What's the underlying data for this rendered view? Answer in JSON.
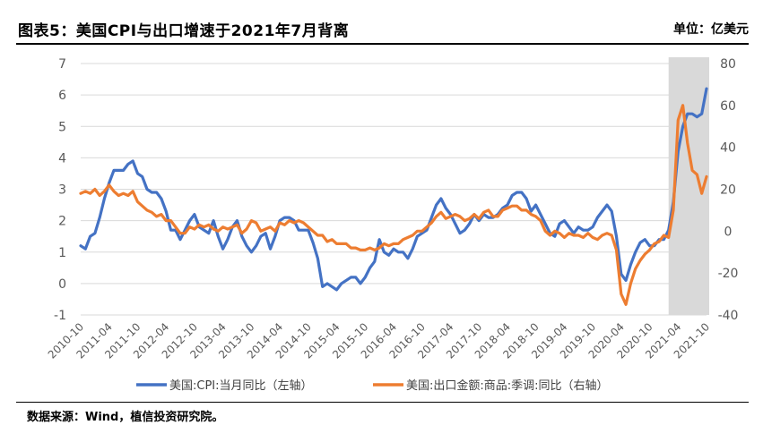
{
  "header": {
    "title": "图表5：美国CPI与出口增速于2021年7月背离",
    "unit": "单位：亿美元"
  },
  "footer": {
    "source": "数据来源：Wind，植信投资研究院。"
  },
  "colors": {
    "cpi": "#4472C4",
    "export": "#ED7D31",
    "shade": "#D9D9D9",
    "grid": "#D9D9D9",
    "axis_text": "#595959"
  },
  "chart_data": {
    "type": "line",
    "x_labels": [
      "2010-10",
      "2011-04",
      "2011-10",
      "2012-04",
      "2012-10",
      "2013-04",
      "2013-10",
      "2014-04",
      "2014-10",
      "2015-04",
      "2015-10",
      "2016-04",
      "2016-10",
      "2017-04",
      "2017-10",
      "2018-04",
      "2018-10",
      "2019-04",
      "2019-10",
      "2020-04",
      "2020-10",
      "2021-04",
      "2021-10"
    ],
    "x_start": "2010-10",
    "x_end": "2021-10",
    "ylim_left": [
      -1,
      7
    ],
    "yticks_left": [
      "-1",
      "0",
      "1",
      "2",
      "3",
      "4",
      "5",
      "6",
      "7"
    ],
    "ylim_right": [
      -40,
      80
    ],
    "yticks_right": [
      "-40",
      "-20",
      "0",
      "20",
      "40",
      "60",
      "80"
    ],
    "shaded_region": {
      "from": "2021-02",
      "to": "2021-10"
    },
    "grid": "horizontal",
    "legend_position": "bottom",
    "series": [
      {
        "name": "美国:CPI:当月同比（左轴）",
        "axis": "left",
        "values": [
          [
            "2010-10",
            1.2
          ],
          [
            "2010-11",
            1.1
          ],
          [
            "2010-12",
            1.5
          ],
          [
            "2011-01",
            1.6
          ],
          [
            "2011-02",
            2.1
          ],
          [
            "2011-03",
            2.7
          ],
          [
            "2011-04",
            3.2
          ],
          [
            "2011-05",
            3.6
          ],
          [
            "2011-06",
            3.6
          ],
          [
            "2011-07",
            3.6
          ],
          [
            "2011-08",
            3.8
          ],
          [
            "2011-09",
            3.9
          ],
          [
            "2011-10",
            3.5
          ],
          [
            "2011-11",
            3.4
          ],
          [
            "2011-12",
            3.0
          ],
          [
            "2012-01",
            2.9
          ],
          [
            "2012-02",
            2.9
          ],
          [
            "2012-03",
            2.7
          ],
          [
            "2012-04",
            2.3
          ],
          [
            "2012-05",
            1.7
          ],
          [
            "2012-06",
            1.7
          ],
          [
            "2012-07",
            1.4
          ],
          [
            "2012-08",
            1.7
          ],
          [
            "2012-09",
            2.0
          ],
          [
            "2012-10",
            2.2
          ],
          [
            "2012-11",
            1.8
          ],
          [
            "2012-12",
            1.7
          ],
          [
            "2013-01",
            1.6
          ],
          [
            "2013-02",
            2.0
          ],
          [
            "2013-03",
            1.5
          ],
          [
            "2013-04",
            1.1
          ],
          [
            "2013-05",
            1.4
          ],
          [
            "2013-06",
            1.8
          ],
          [
            "2013-07",
            2.0
          ],
          [
            "2013-08",
            1.5
          ],
          [
            "2013-09",
            1.2
          ],
          [
            "2013-10",
            1.0
          ],
          [
            "2013-11",
            1.2
          ],
          [
            "2013-12",
            1.5
          ],
          [
            "2014-01",
            1.6
          ],
          [
            "2014-02",
            1.1
          ],
          [
            "2014-03",
            1.5
          ],
          [
            "2014-04",
            2.0
          ],
          [
            "2014-05",
            2.1
          ],
          [
            "2014-06",
            2.1
          ],
          [
            "2014-07",
            2.0
          ],
          [
            "2014-08",
            1.7
          ],
          [
            "2014-09",
            1.7
          ],
          [
            "2014-10",
            1.7
          ],
          [
            "2014-11",
            1.3
          ],
          [
            "2014-12",
            0.8
          ],
          [
            "2015-01",
            -0.1
          ],
          [
            "2015-02",
            0.0
          ],
          [
            "2015-03",
            -0.1
          ],
          [
            "2015-04",
            -0.2
          ],
          [
            "2015-05",
            0.0
          ],
          [
            "2015-06",
            0.1
          ],
          [
            "2015-07",
            0.2
          ],
          [
            "2015-08",
            0.2
          ],
          [
            "2015-09",
            0.0
          ],
          [
            "2015-10",
            0.2
          ],
          [
            "2015-11",
            0.5
          ],
          [
            "2015-12",
            0.7
          ],
          [
            "2016-01",
            1.4
          ],
          [
            "2016-02",
            1.0
          ],
          [
            "2016-03",
            0.9
          ],
          [
            "2016-04",
            1.1
          ],
          [
            "2016-05",
            1.0
          ],
          [
            "2016-06",
            1.0
          ],
          [
            "2016-07",
            0.8
          ],
          [
            "2016-08",
            1.1
          ],
          [
            "2016-09",
            1.5
          ],
          [
            "2016-10",
            1.6
          ],
          [
            "2016-11",
            1.7
          ],
          [
            "2016-12",
            2.1
          ],
          [
            "2017-01",
            2.5
          ],
          [
            "2017-02",
            2.7
          ],
          [
            "2017-03",
            2.4
          ],
          [
            "2017-04",
            2.2
          ],
          [
            "2017-05",
            1.9
          ],
          [
            "2017-06",
            1.6
          ],
          [
            "2017-07",
            1.7
          ],
          [
            "2017-08",
            1.9
          ],
          [
            "2017-09",
            2.2
          ],
          [
            "2017-10",
            2.0
          ],
          [
            "2017-11",
            2.2
          ],
          [
            "2017-12",
            2.1
          ],
          [
            "2018-01",
            2.1
          ],
          [
            "2018-02",
            2.2
          ],
          [
            "2018-03",
            2.4
          ],
          [
            "2018-04",
            2.5
          ],
          [
            "2018-05",
            2.8
          ],
          [
            "2018-06",
            2.9
          ],
          [
            "2018-07",
            2.9
          ],
          [
            "2018-08",
            2.7
          ],
          [
            "2018-09",
            2.3
          ],
          [
            "2018-10",
            2.5
          ],
          [
            "2018-11",
            2.2
          ],
          [
            "2018-12",
            1.9
          ],
          [
            "2019-01",
            1.6
          ],
          [
            "2019-02",
            1.5
          ],
          [
            "2019-03",
            1.9
          ],
          [
            "2019-04",
            2.0
          ],
          [
            "2019-05",
            1.8
          ],
          [
            "2019-06",
            1.6
          ],
          [
            "2019-07",
            1.8
          ],
          [
            "2019-08",
            1.7
          ],
          [
            "2019-09",
            1.7
          ],
          [
            "2019-10",
            1.8
          ],
          [
            "2019-11",
            2.1
          ],
          [
            "2019-12",
            2.3
          ],
          [
            "2020-01",
            2.5
          ],
          [
            "2020-02",
            2.3
          ],
          [
            "2020-03",
            1.5
          ],
          [
            "2020-04",
            0.3
          ],
          [
            "2020-05",
            0.1
          ],
          [
            "2020-06",
            0.6
          ],
          [
            "2020-07",
            1.0
          ],
          [
            "2020-08",
            1.3
          ],
          [
            "2020-09",
            1.4
          ],
          [
            "2020-10",
            1.2
          ],
          [
            "2020-11",
            1.2
          ],
          [
            "2020-12",
            1.4
          ],
          [
            "2021-01",
            1.4
          ],
          [
            "2021-02",
            1.7
          ],
          [
            "2021-03",
            2.6
          ],
          [
            "2021-04",
            4.2
          ],
          [
            "2021-05",
            5.0
          ],
          [
            "2021-06",
            5.4
          ],
          [
            "2021-07",
            5.4
          ],
          [
            "2021-08",
            5.3
          ],
          [
            "2021-09",
            5.4
          ],
          [
            "2021-10",
            6.2
          ]
        ]
      },
      {
        "name": "美国:出口金额:商品:季调:同比（右轴）",
        "axis": "right",
        "values": [
          [
            "2010-10",
            18
          ],
          [
            "2010-11",
            19
          ],
          [
            "2010-12",
            18
          ],
          [
            "2011-01",
            20
          ],
          [
            "2011-02",
            17
          ],
          [
            "2011-03",
            19
          ],
          [
            "2011-04",
            22
          ],
          [
            "2011-05",
            19
          ],
          [
            "2011-06",
            17
          ],
          [
            "2011-07",
            18
          ],
          [
            "2011-08",
            17
          ],
          [
            "2011-09",
            19
          ],
          [
            "2011-10",
            14
          ],
          [
            "2011-11",
            12
          ],
          [
            "2011-12",
            10
          ],
          [
            "2012-01",
            9
          ],
          [
            "2012-02",
            7
          ],
          [
            "2012-03",
            8
          ],
          [
            "2012-04",
            5
          ],
          [
            "2012-05",
            5
          ],
          [
            "2012-06",
            2
          ],
          [
            "2012-07",
            -1
          ],
          [
            "2012-08",
            -1
          ],
          [
            "2012-09",
            2
          ],
          [
            "2012-10",
            1
          ],
          [
            "2012-11",
            3
          ],
          [
            "2012-12",
            2
          ],
          [
            "2013-01",
            3
          ],
          [
            "2013-02",
            1
          ],
          [
            "2013-03",
            0
          ],
          [
            "2013-04",
            2
          ],
          [
            "2013-05",
            1
          ],
          [
            "2013-06",
            2
          ],
          [
            "2013-07",
            3
          ],
          [
            "2013-08",
            -1
          ],
          [
            "2013-09",
            1
          ],
          [
            "2013-10",
            5
          ],
          [
            "2013-11",
            4
          ],
          [
            "2013-12",
            0
          ],
          [
            "2014-01",
            1
          ],
          [
            "2014-02",
            2
          ],
          [
            "2014-03",
            0
          ],
          [
            "2014-04",
            4
          ],
          [
            "2014-05",
            3
          ],
          [
            "2014-06",
            5
          ],
          [
            "2014-07",
            4
          ],
          [
            "2014-08",
            5
          ],
          [
            "2014-09",
            4
          ],
          [
            "2014-10",
            2
          ],
          [
            "2014-11",
            0
          ],
          [
            "2014-12",
            -2
          ],
          [
            "2015-01",
            -2
          ],
          [
            "2015-02",
            -5
          ],
          [
            "2015-03",
            -4
          ],
          [
            "2015-04",
            -6
          ],
          [
            "2015-05",
            -6
          ],
          [
            "2015-06",
            -6
          ],
          [
            "2015-07",
            -8
          ],
          [
            "2015-08",
            -8
          ],
          [
            "2015-09",
            -9
          ],
          [
            "2015-10",
            -9
          ],
          [
            "2015-11",
            -8
          ],
          [
            "2015-12",
            -9
          ],
          [
            "2016-01",
            -8
          ],
          [
            "2016-02",
            -6
          ],
          [
            "2016-03",
            -7
          ],
          [
            "2016-04",
            -6
          ],
          [
            "2016-05",
            -6
          ],
          [
            "2016-06",
            -4
          ],
          [
            "2016-07",
            -3
          ],
          [
            "2016-08",
            -2
          ],
          [
            "2016-09",
            0
          ],
          [
            "2016-10",
            0
          ],
          [
            "2016-11",
            2
          ],
          [
            "2016-12",
            4
          ],
          [
            "2017-01",
            7
          ],
          [
            "2017-02",
            9
          ],
          [
            "2017-03",
            6
          ],
          [
            "2017-04",
            7
          ],
          [
            "2017-05",
            8
          ],
          [
            "2017-06",
            7
          ],
          [
            "2017-07",
            5
          ],
          [
            "2017-08",
            6
          ],
          [
            "2017-09",
            8
          ],
          [
            "2017-10",
            6
          ],
          [
            "2017-11",
            9
          ],
          [
            "2017-12",
            10
          ],
          [
            "2018-01",
            7
          ],
          [
            "2018-02",
            7
          ],
          [
            "2018-03",
            10
          ],
          [
            "2018-04",
            11
          ],
          [
            "2018-05",
            12
          ],
          [
            "2018-06",
            12
          ],
          [
            "2018-07",
            10
          ],
          [
            "2018-08",
            10
          ],
          [
            "2018-09",
            8
          ],
          [
            "2018-10",
            7
          ],
          [
            "2018-11",
            5
          ],
          [
            "2018-12",
            0
          ],
          [
            "2019-01",
            -2
          ],
          [
            "2019-02",
            0
          ],
          [
            "2019-03",
            -1
          ],
          [
            "2019-04",
            -3
          ],
          [
            "2019-05",
            -1
          ],
          [
            "2019-06",
            -2
          ],
          [
            "2019-07",
            -2
          ],
          [
            "2019-08",
            -3
          ],
          [
            "2019-09",
            -1
          ],
          [
            "2019-10",
            -3
          ],
          [
            "2019-11",
            -4
          ],
          [
            "2019-12",
            -2
          ],
          [
            "2020-01",
            -1
          ],
          [
            "2020-02",
            -2
          ],
          [
            "2020-03",
            -9
          ],
          [
            "2020-04",
            -30
          ],
          [
            "2020-05",
            -35
          ],
          [
            "2020-06",
            -25
          ],
          [
            "2020-07",
            -18
          ],
          [
            "2020-08",
            -14
          ],
          [
            "2020-09",
            -11
          ],
          [
            "2020-10",
            -9
          ],
          [
            "2020-11",
            -6
          ],
          [
            "2020-12",
            -5
          ],
          [
            "2021-01",
            -2
          ],
          [
            "2021-02",
            -3
          ],
          [
            "2021-03",
            10
          ],
          [
            "2021-04",
            53
          ],
          [
            "2021-05",
            60
          ],
          [
            "2021-06",
            42
          ],
          [
            "2021-07",
            29
          ],
          [
            "2021-08",
            27
          ],
          [
            "2021-09",
            18
          ],
          [
            "2021-10",
            26
          ]
        ]
      }
    ]
  }
}
